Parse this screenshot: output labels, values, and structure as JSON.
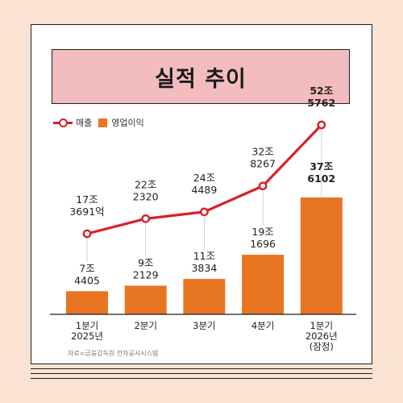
{
  "title": "실적 추이",
  "legend": {
    "line_label": "매출",
    "bar_label": "영업이익"
  },
  "source": "자료=금융감독원 전자공시시스템",
  "colors": {
    "background": "#fbe3d4",
    "title_box": "#f3bcbf",
    "line": "#d8202a",
    "bar": "#e87522"
  },
  "chart_data": {
    "type": "bar+line",
    "categories": [
      [
        "1분기",
        "2025년"
      ],
      [
        "2분기"
      ],
      [
        "3분기"
      ],
      [
        "4분기"
      ],
      [
        "1분기",
        "2026년",
        "(잠정)"
      ]
    ],
    "series": [
      {
        "name": "매출",
        "type": "line",
        "unit": "억원",
        "values": [
          173691,
          222320,
          244489,
          328267,
          525762
        ],
        "labels": [
          [
            "17조",
            "3691억"
          ],
          [
            "22조",
            "2320"
          ],
          [
            "24조",
            "4489"
          ],
          [
            "32조",
            "8267"
          ],
          [
            "52조",
            "5762"
          ]
        ]
      },
      {
        "name": "영업이익",
        "type": "bar",
        "unit": "억원",
        "values": [
          74405,
          92129,
          113834,
          191696,
          376102
        ],
        "labels": [
          [
            "7조",
            "4405"
          ],
          [
            "9조",
            "2129"
          ],
          [
            "11조",
            "3834"
          ],
          [
            "19조",
            "1696"
          ],
          [
            "37조",
            "6102"
          ]
        ]
      }
    ],
    "highlight_last": true,
    "grid": false,
    "legend_position": "top-left"
  }
}
